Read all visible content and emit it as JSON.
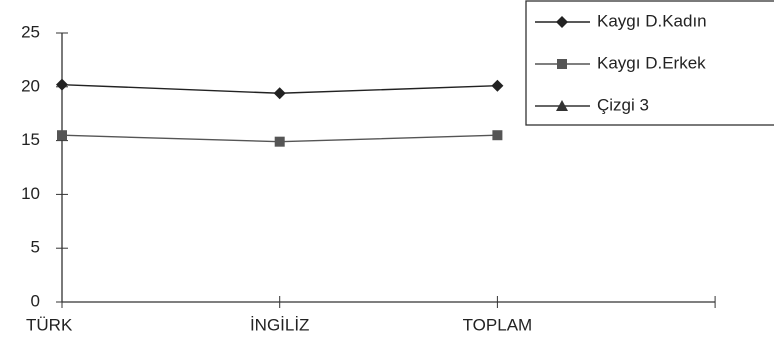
{
  "chart_data": {
    "type": "line",
    "categories": [
      "TÜRK",
      "İNGİLİZ",
      "TOPLAM",
      null
    ],
    "series": [
      {
        "name": "Kaygı D.Kadın",
        "color": "#222222",
        "marker": "diamond",
        "values": [
          20.2,
          19.4,
          20.1,
          null
        ]
      },
      {
        "name": "Kaygı D.Erkek",
        "color": "#555555",
        "marker": "square",
        "values": [
          15.5,
          14.9,
          15.5,
          null
        ]
      },
      {
        "name": "Çizgi 3",
        "color": "#333333",
        "marker": "triangle",
        "values": [
          null,
          null,
          null,
          null
        ]
      }
    ],
    "ylim": [
      0,
      25
    ],
    "yticks": [
      0,
      5,
      10,
      15,
      20,
      25
    ],
    "grid": false,
    "legend": "top-right"
  }
}
